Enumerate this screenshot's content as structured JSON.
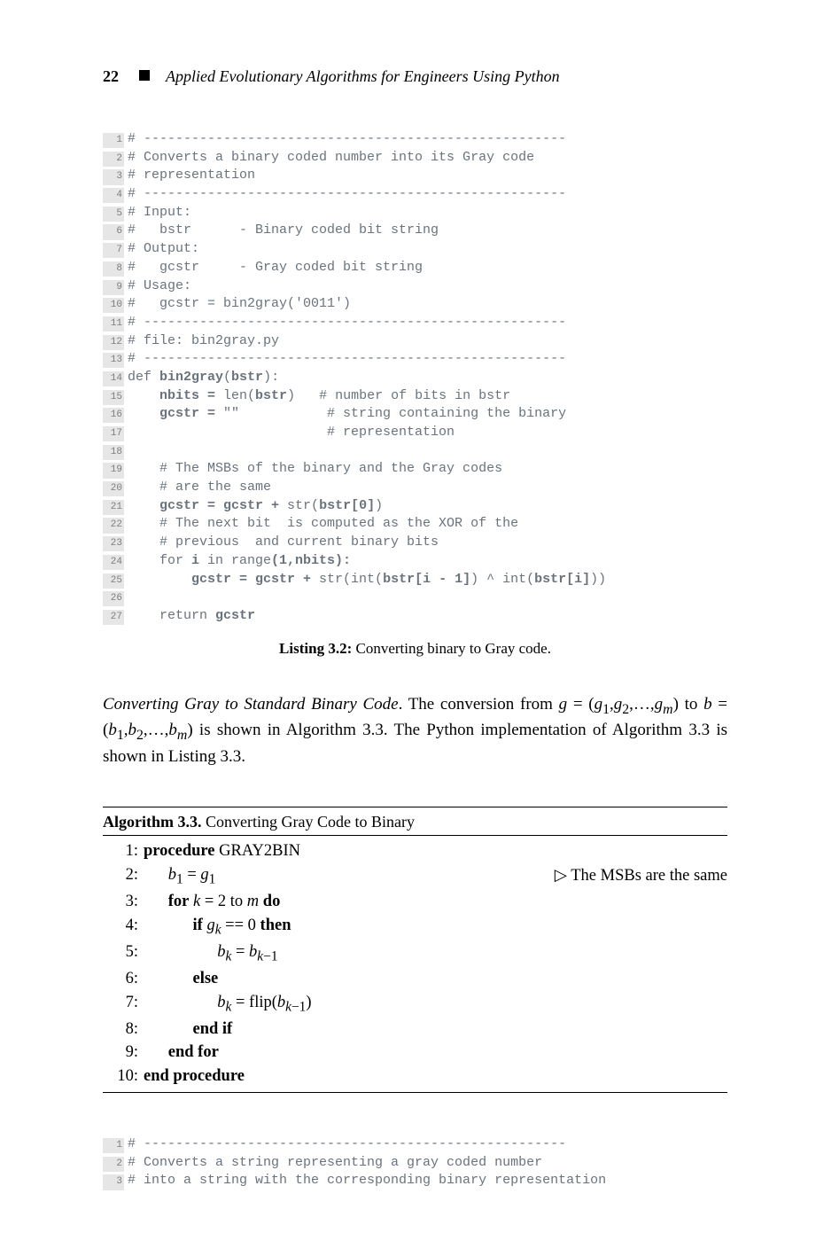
{
  "header": {
    "page_number": "22",
    "book_title": "Applied Evolutionary Algorithms for Engineers Using Python"
  },
  "code1": {
    "lines": [
      {
        "n": "1",
        "t": "# -----------------------------------------------------",
        "c": "cmt"
      },
      {
        "n": "2",
        "t": "# Converts a binary coded number into its Gray code",
        "c": "cmt"
      },
      {
        "n": "3",
        "t": "# representation",
        "c": "cmt"
      },
      {
        "n": "4",
        "t": "# -----------------------------------------------------",
        "c": "cmt"
      },
      {
        "n": "5",
        "t": "# Input:",
        "c": "cmt"
      },
      {
        "n": "6",
        "t": "#   bstr      - Binary coded bit string",
        "c": "cmt"
      },
      {
        "n": "7",
        "t": "# Output:",
        "c": "cmt"
      },
      {
        "n": "8",
        "t": "#   gcstr     - Gray coded bit string",
        "c": "cmt"
      },
      {
        "n": "9",
        "t": "# Usage:",
        "c": "cmt"
      },
      {
        "n": "10",
        "t": "#   gcstr = bin2gray('0011')",
        "c": "cmt"
      },
      {
        "n": "11",
        "t": "# -----------------------------------------------------",
        "c": "cmt"
      },
      {
        "n": "12",
        "t": "# file: bin2gray.py",
        "c": "cmt"
      },
      {
        "n": "13",
        "t": "# -----------------------------------------------------",
        "c": "cmt"
      },
      {
        "n": "14",
        "t": "def <b>bin2gray</b>(<b>bstr</b>):",
        "c": "plain"
      },
      {
        "n": "15",
        "t": "    <b>nbits =</b> len(<b>bstr</b>)   # number of bits in bstr",
        "c": "plain"
      },
      {
        "n": "16",
        "t": "    <b>gcstr =</b> \"\"           # string containing the binary",
        "c": "plain"
      },
      {
        "n": "17",
        "t": "                         # representation",
        "c": "cmt"
      },
      {
        "n": "18",
        "t": "",
        "c": "plain"
      },
      {
        "n": "19",
        "t": "    # The MSBs of the binary and the Gray codes",
        "c": "cmt"
      },
      {
        "n": "20",
        "t": "    # are the same",
        "c": "cmt"
      },
      {
        "n": "21",
        "t": "    <b>gcstr = gcstr +</b> str(<b>bstr[0]</b>)",
        "c": "plain"
      },
      {
        "n": "22",
        "t": "    # The next bit  is computed as the XOR of the",
        "c": "cmt"
      },
      {
        "n": "23",
        "t": "    # previous  and current binary bits",
        "c": "cmt"
      },
      {
        "n": "24",
        "t": "    for <b>i</b> in range<b>(1,nbits):</b>",
        "c": "plain"
      },
      {
        "n": "25",
        "t": "        <b>gcstr = gcstr +</b> str(int(<b>bstr[i - 1]</b>) ^ int(<b>bstr[i]</b>))",
        "c": "plain"
      },
      {
        "n": "26",
        "t": "",
        "c": "plain"
      },
      {
        "n": "27",
        "t": "    return <b>gcstr</b>",
        "c": "plain"
      }
    ]
  },
  "listing_caption_label": "Listing 3.2:",
  "listing_caption_text": " Converting binary to Gray code.",
  "body_paragraph_lead": "Converting Gray to Standard Binary Code",
  "body_paragraph_rest1": ". The conversion from ",
  "body_paragraph_rest2": " to ",
  "body_paragraph_rest3": " is shown in Algorithm 3.3. The Python implementation of Algorithm 3.3 is shown in Listing 3.3.",
  "algo_title_label": "Algorithm 3.3.",
  "algo_title_text": " Converting Gray Code to Binary",
  "algo_lines": [
    {
      "n": "1:",
      "indent": 0,
      "html": "<b>procedure</b> GRAY2BIN",
      "comment": ""
    },
    {
      "n": "2:",
      "indent": 1,
      "html": "<i>b</i><sub>1</sub> = <i>g</i><sub>1</sub>",
      "comment": "▷ The MSBs are the same"
    },
    {
      "n": "3:",
      "indent": 1,
      "html": "<b>for</b> <i>k</i> = 2 to <i>m</i> <b>do</b>",
      "comment": ""
    },
    {
      "n": "4:",
      "indent": 2,
      "html": "<b>if</b> <i>g<sub>k</sub></i> == 0 <b>then</b>",
      "comment": ""
    },
    {
      "n": "5:",
      "indent": 3,
      "html": "<i>b<sub>k</sub></i> = <i>b</i><sub><i>k</i>−1</sub>",
      "comment": ""
    },
    {
      "n": "6:",
      "indent": 2,
      "html": "<b>else</b>",
      "comment": ""
    },
    {
      "n": "7:",
      "indent": 3,
      "html": "<i>b<sub>k</sub></i> = flip(<i>b</i><sub><i>k</i>−1</sub>)",
      "comment": ""
    },
    {
      "n": "8:",
      "indent": 2,
      "html": "<b>end if</b>",
      "comment": ""
    },
    {
      "n": "9:",
      "indent": 1,
      "html": "<b>end for</b>",
      "comment": ""
    },
    {
      "n": "10:",
      "indent": 0,
      "html": "<b>end procedure</b>",
      "comment": ""
    }
  ],
  "code2": {
    "lines": [
      {
        "n": "1",
        "t": "# -----------------------------------------------------",
        "c": "cmt"
      },
      {
        "n": "2",
        "t": "# Converts a string representing a gray coded number",
        "c": "cmt"
      },
      {
        "n": "3",
        "t": "# into a string with the corresponding binary representation",
        "c": "cmt"
      }
    ]
  }
}
